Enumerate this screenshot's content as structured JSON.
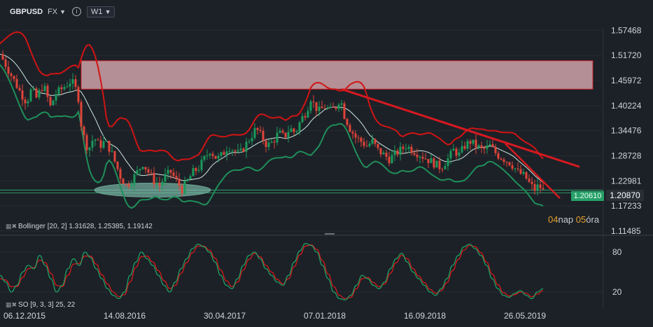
{
  "toolbar": {
    "symbol": "GBPUSD",
    "market": "FX",
    "info_icon": "info-icon",
    "timeframe": "W1"
  },
  "colors": {
    "background": "#1c2127",
    "bull": "#1a9b5c",
    "bear": "#e0443a",
    "bb_outer": "#d11414",
    "bb_lower": "#1f8f5a",
    "bb_mid": "#cfe8e0",
    "trendline": "#d71920",
    "zone_fill": "#e7b4bb",
    "stoch_k": "#1f9e63",
    "stoch_d": "#d11a1a",
    "last_price_bg": "#27a069",
    "cursor_price_bg": "#2a2f36"
  },
  "legends": {
    "bollinger": "Bollinger  [20,  2]  1.31628,  1.25385,  1.19142",
    "stochastic": "SO [9, 3, 3] 25, 22",
    "icon": "settings-close-icon"
  },
  "countdown": {
    "days": "04",
    "days_unit": "nap",
    "hours": "05",
    "hours_unit": "óra"
  },
  "price_tags": {
    "last": "1.20610",
    "cursor": "1.20870"
  },
  "chart_data": [
    {
      "type": "candlestick",
      "title": "GBPUSD",
      "timeframe": "W1",
      "x_tick_labels": [
        "06.12.2015",
        "14.08.2016",
        "30.04.2017",
        "07.01.2018",
        "16.09.2018",
        "26.05.2019"
      ],
      "y_tick_labels": [
        "1.57468",
        "1.51720",
        "1.45972",
        "1.40224",
        "1.34476",
        "1.28728",
        "1.22981",
        "1.17233",
        "1.11485"
      ],
      "ylim": [
        1.11485,
        1.58
      ],
      "close_path": [
        [
          0,
          1.52
        ],
        [
          10,
          1.49
        ],
        [
          20,
          1.46
        ],
        [
          30,
          1.43
        ],
        [
          38,
          1.41
        ],
        [
          45,
          1.44
        ],
        [
          52,
          1.42
        ],
        [
          62,
          1.45
        ],
        [
          72,
          1.4
        ],
        [
          80,
          1.43
        ],
        [
          88,
          1.44
        ],
        [
          95,
          1.45
        ],
        [
          102,
          1.46
        ],
        [
          108,
          1.44
        ],
        [
          112,
          1.42
        ],
        [
          116,
          1.36
        ],
        [
          120,
          1.33
        ],
        [
          126,
          1.3
        ],
        [
          134,
          1.33
        ],
        [
          142,
          1.31
        ],
        [
          150,
          1.32
        ],
        [
          158,
          1.3
        ],
        [
          165,
          1.27
        ],
        [
          172,
          1.24
        ],
        [
          180,
          1.22
        ],
        [
          188,
          1.23
        ],
        [
          196,
          1.25
        ],
        [
          204,
          1.27
        ],
        [
          212,
          1.25
        ],
        [
          220,
          1.23
        ],
        [
          228,
          1.22
        ],
        [
          236,
          1.24
        ],
        [
          244,
          1.25
        ],
        [
          252,
          1.23
        ],
        [
          260,
          1.21
        ],
        [
          268,
          1.23
        ],
        [
          276,
          1.25
        ],
        [
          284,
          1.26
        ],
        [
          292,
          1.28
        ],
        [
          300,
          1.3
        ],
        [
          310,
          1.28
        ],
        [
          318,
          1.29
        ],
        [
          326,
          1.31
        ],
        [
          334,
          1.3
        ],
        [
          342,
          1.29
        ],
        [
          350,
          1.31
        ],
        [
          358,
          1.33
        ],
        [
          366,
          1.35
        ],
        [
          374,
          1.33
        ],
        [
          382,
          1.31
        ],
        [
          390,
          1.32
        ],
        [
          398,
          1.34
        ],
        [
          406,
          1.33
        ],
        [
          414,
          1.35
        ],
        [
          422,
          1.34
        ],
        [
          430,
          1.37
        ],
        [
          438,
          1.39
        ],
        [
          444,
          1.42
        ],
        [
          450,
          1.4
        ],
        [
          456,
          1.39
        ],
        [
          464,
          1.4
        ],
        [
          472,
          1.39
        ],
        [
          480,
          1.4
        ],
        [
          486,
          1.42
        ],
        [
          492,
          1.38
        ],
        [
          500,
          1.35
        ],
        [
          508,
          1.33
        ],
        [
          516,
          1.32
        ],
        [
          524,
          1.31
        ],
        [
          532,
          1.32
        ],
        [
          540,
          1.3
        ],
        [
          548,
          1.29
        ],
        [
          556,
          1.28
        ],
        [
          564,
          1.29
        ],
        [
          572,
          1.3
        ],
        [
          580,
          1.31
        ],
        [
          590,
          1.3
        ],
        [
          600,
          1.29
        ],
        [
          610,
          1.28
        ],
        [
          620,
          1.27
        ],
        [
          630,
          1.26
        ],
        [
          640,
          1.28
        ],
        [
          648,
          1.3
        ],
        [
          656,
          1.29
        ],
        [
          664,
          1.31
        ],
        [
          672,
          1.32
        ],
        [
          680,
          1.31
        ],
        [
          690,
          1.3
        ],
        [
          700,
          1.31
        ],
        [
          710,
          1.29
        ],
        [
          720,
          1.28
        ],
        [
          730,
          1.27
        ],
        [
          740,
          1.25
        ],
        [
          750,
          1.24
        ],
        [
          758,
          1.22
        ],
        [
          764,
          1.21
        ],
        [
          770,
          1.22
        ],
        [
          776,
          1.2061
        ]
      ],
      "bollinger": {
        "period": 20,
        "deviation": 2,
        "upper": 1.31628,
        "middle": 1.25385,
        "lower": 1.19142
      },
      "resistance_zone": {
        "top": 1.505,
        "bottom": 1.44
      },
      "support_level": 1.2087,
      "trendline": {
        "from": [
          488,
          1.44
        ],
        "to": [
          828,
          1.262
        ]
      },
      "highlight_ellipse": {
        "x_center": 218,
        "level": 1.2087
      },
      "last_price": 1.2061,
      "cursor_price": 1.2087
    },
    {
      "type": "line",
      "title": "SO [9, 3, 3] 25, 22",
      "y_tick_labels": [
        "80",
        "20"
      ],
      "ylim": [
        0,
        100
      ],
      "series": [
        {
          "name": "%K",
          "values": [
            45,
            35,
            20,
            30,
            50,
            60,
            55,
            75,
            60,
            40,
            20,
            30,
            55,
            70,
            60,
            80,
            72,
            55,
            40,
            25,
            15,
            10,
            20,
            45,
            65,
            80,
            70,
            60,
            45,
            30,
            20,
            35,
            55,
            70,
            85,
            92,
            88,
            80,
            65,
            45,
            30,
            25,
            40,
            60,
            75,
            80,
            70,
            55,
            45,
            35,
            30,
            45,
            65,
            82,
            93,
            90,
            80,
            60,
            40,
            20,
            10,
            8,
            15,
            30,
            45,
            40,
            30,
            25,
            35,
            55,
            70,
            78,
            65,
            50,
            40,
            30,
            20,
            15,
            25,
            40,
            60,
            75,
            88,
            92,
            85,
            75,
            60,
            40,
            25,
            15,
            12,
            18,
            22,
            15,
            10,
            20,
            25
          ]
        },
        {
          "name": "%D",
          "values": [
            40,
            38,
            28,
            28,
            42,
            55,
            57,
            68,
            64,
            48,
            30,
            28,
            45,
            62,
            63,
            74,
            74,
            62,
            46,
            32,
            20,
            13,
            16,
            35,
            57,
            73,
            74,
            65,
            52,
            37,
            25,
            30,
            48,
            64,
            79,
            89,
            89,
            83,
            71,
            53,
            37,
            28,
            35,
            53,
            69,
            78,
            73,
            60,
            50,
            39,
            32,
            40,
            58,
            76,
            89,
            91,
            84,
            67,
            47,
            28,
            15,
            10,
            12,
            25,
            40,
            42,
            34,
            28,
            32,
            48,
            64,
            75,
            70,
            55,
            44,
            34,
            24,
            18,
            22,
            34,
            52,
            69,
            83,
            90,
            88,
            79,
            65,
            47,
            31,
            19,
            14,
            16,
            20,
            18,
            13,
            17,
            22
          ]
        }
      ]
    }
  ]
}
